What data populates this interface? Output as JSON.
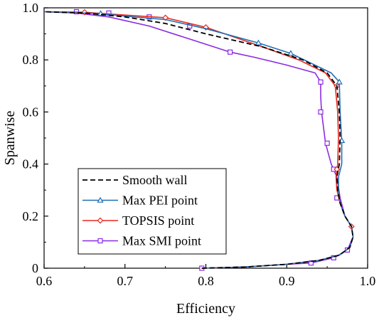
{
  "chart_data": {
    "type": "line",
    "xlabel": "Efficiency",
    "ylabel": "Spanwise",
    "xlim": [
      0.6,
      1.0
    ],
    "ylim": [
      0,
      1.0
    ],
    "x_ticks": [
      0.6,
      0.7,
      0.8,
      0.9,
      1.0
    ],
    "x_tick_labels": [
      "0.6",
      "0.7",
      "0.8",
      "0.9",
      "1.0"
    ],
    "y_ticks": [
      0,
      0.2,
      0.4,
      0.6,
      0.8,
      1.0
    ],
    "y_tick_labels": [
      "0",
      "0.2",
      "0.4",
      "0.6",
      "0.8",
      "1.0"
    ],
    "grid": false,
    "legend_position": "bottom-left",
    "series": [
      {
        "name": "Smooth wall",
        "color": "#000000",
        "dash": "dashed",
        "marker": "none",
        "x": [
          0.795,
          0.85,
          0.9,
          0.94,
          0.965,
          0.978,
          0.982,
          0.98,
          0.972,
          0.966,
          0.963,
          0.962,
          0.965,
          0.966,
          0.965,
          0.962,
          0.95,
          0.92,
          0.87,
          0.8,
          0.75,
          0.7,
          0.65,
          0.6
        ],
        "y": [
          0.0,
          0.005,
          0.015,
          0.03,
          0.05,
          0.08,
          0.12,
          0.16,
          0.2,
          0.25,
          0.3,
          0.35,
          0.4,
          0.5,
          0.6,
          0.7,
          0.75,
          0.8,
          0.85,
          0.9,
          0.94,
          0.965,
          0.98,
          0.985
        ]
      },
      {
        "name": "Max PEI point",
        "color": "#1f6fb5",
        "dash": "solid",
        "marker": "triangle",
        "x": [
          0.795,
          0.85,
          0.9,
          0.94,
          0.965,
          0.978,
          0.982,
          0.98,
          0.972,
          0.966,
          0.964,
          0.964,
          0.968,
          0.968,
          0.966,
          0.965,
          0.955,
          0.905,
          0.865,
          0.8,
          0.75,
          0.7,
          0.67,
          0.6
        ],
        "y": [
          0.0,
          0.005,
          0.015,
          0.03,
          0.05,
          0.08,
          0.12,
          0.16,
          0.2,
          0.25,
          0.3,
          0.35,
          0.4,
          0.49,
          0.6,
          0.715,
          0.75,
          0.825,
          0.865,
          0.92,
          0.955,
          0.968,
          0.978,
          0.985
        ],
        "marker_x": [
          0.968,
          0.965,
          0.905,
          0.865,
          0.67
        ],
        "marker_y": [
          0.49,
          0.715,
          0.825,
          0.865,
          0.978
        ]
      },
      {
        "name": "TOPSIS point",
        "color": "#e8281e",
        "dash": "solid",
        "marker": "diamond",
        "x": [
          0.795,
          0.85,
          0.9,
          0.94,
          0.965,
          0.978,
          0.982,
          0.98,
          0.972,
          0.966,
          0.962,
          0.961,
          0.963,
          0.964,
          0.963,
          0.96,
          0.948,
          0.915,
          0.87,
          0.8,
          0.75,
          0.7,
          0.65,
          0.6
        ],
        "y": [
          0.0,
          0.005,
          0.015,
          0.03,
          0.05,
          0.08,
          0.12,
          0.16,
          0.2,
          0.25,
          0.3,
          0.35,
          0.4,
          0.5,
          0.6,
          0.7,
          0.75,
          0.8,
          0.85,
          0.925,
          0.962,
          0.972,
          0.983,
          0.985
        ],
        "marker_x": [
          0.98,
          0.962,
          0.962,
          0.8,
          0.75,
          0.65
        ],
        "marker_y": [
          0.16,
          0.38,
          0.7,
          0.925,
          0.962,
          0.983
        ]
      },
      {
        "name": "Max SMI point",
        "color": "#8a2be2",
        "dash": "solid",
        "marker": "square",
        "x": [
          0.795,
          0.85,
          0.9,
          0.93,
          0.958,
          0.975,
          0.982,
          0.98,
          0.972,
          0.966,
          0.962,
          0.955,
          0.948,
          0.943,
          0.942,
          0.942,
          0.935,
          0.9,
          0.86,
          0.83,
          0.78,
          0.73,
          0.68,
          0.64,
          0.6
        ],
        "y": [
          0.0,
          0.005,
          0.015,
          0.02,
          0.04,
          0.07,
          0.12,
          0.16,
          0.2,
          0.27,
          0.35,
          0.4,
          0.48,
          0.6,
          0.66,
          0.715,
          0.75,
          0.78,
          0.81,
          0.83,
          0.88,
          0.93,
          0.965,
          0.98,
          0.985
        ],
        "marker_x": [
          0.795,
          0.93,
          0.958,
          0.975,
          0.962,
          0.958,
          0.95,
          0.942,
          0.942,
          0.83,
          0.78,
          0.73,
          0.68,
          0.64
        ],
        "marker_y": [
          0.0,
          0.02,
          0.04,
          0.07,
          0.27,
          0.38,
          0.48,
          0.6,
          0.715,
          0.83,
          0.93,
          0.965,
          0.98,
          0.985
        ]
      }
    ]
  }
}
